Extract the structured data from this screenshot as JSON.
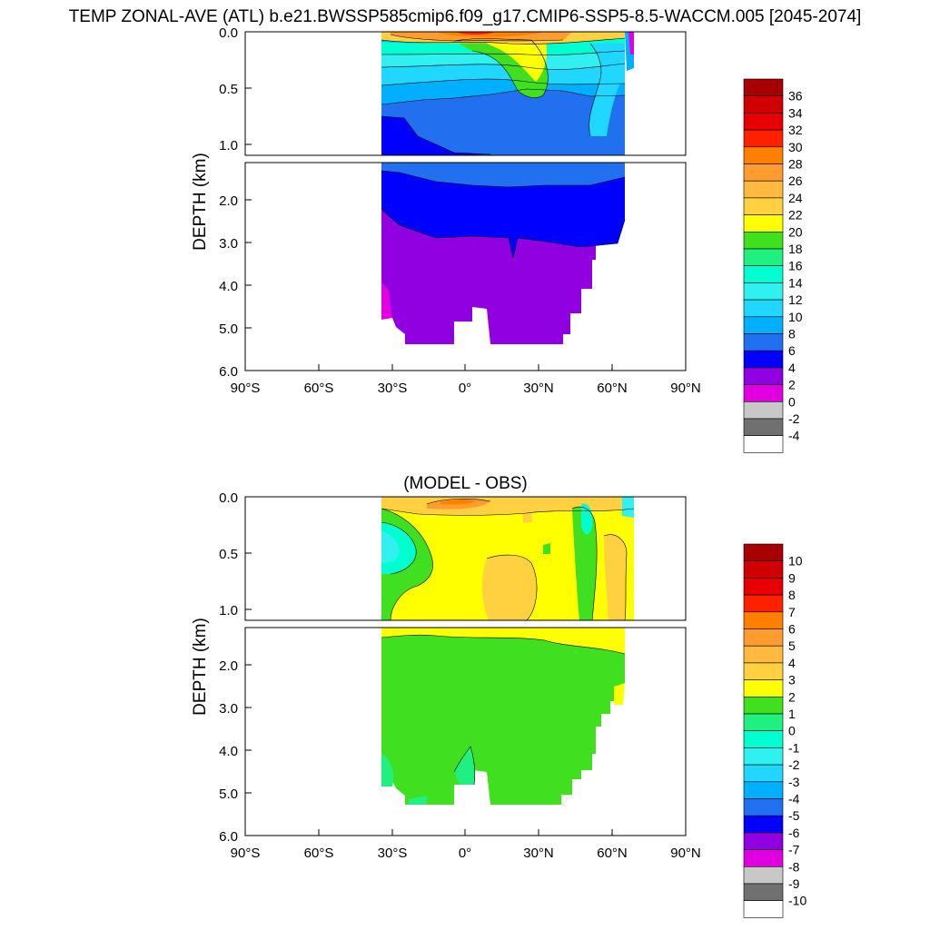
{
  "title": "TEMP ZONAL-AVE (ATL) b.e21.BWSSP585cmip6.f09_g17.CMIP6-SSP5-8.5-WACCM.005 [2045-2074]",
  "chart_data": [
    {
      "type": "heatmap",
      "title": "",
      "ylabel": "DEPTH (km)",
      "xlabel": "",
      "x_ticks": [
        "90°S",
        "60°S",
        "30°S",
        "0°",
        "30°N",
        "60°N",
        "90°N"
      ],
      "y_ticks_upper": [
        "0.0",
        "0.5",
        "1.0"
      ],
      "y_ticks_lower": [
        "2.0",
        "3.0",
        "4.0",
        "5.0",
        "6.0"
      ],
      "xlim": [
        -90,
        90
      ],
      "ylim_km": [
        0,
        6
      ],
      "colorbar_labels": [
        "36",
        "34",
        "32",
        "30",
        "28",
        "26",
        "24",
        "22",
        "20",
        "18",
        "16",
        "14",
        "12",
        "10",
        "8",
        "6",
        "4",
        "2",
        "0",
        "-2",
        "-4"
      ],
      "colorbar_colors": [
        "#a80000",
        "#d00000",
        "#e80000",
        "#ff2000",
        "#ff8000",
        "#ff9c30",
        "#ffb840",
        "#ffd040",
        "#ffff00",
        "#40e020",
        "#20f080",
        "#00ffd0",
        "#30f0f0",
        "#20d8ff",
        "#00b0ff",
        "#2070f0",
        "#0000ff",
        "#9000e0",
        "#e000e0",
        "#c8c8c8",
        "#707070",
        "#ffffff"
      ]
    },
    {
      "type": "heatmap",
      "title": "(MODEL - OBS)",
      "ylabel": "DEPTH (km)",
      "xlabel": "",
      "x_ticks": [
        "90°S",
        "60°S",
        "30°S",
        "0°",
        "30°N",
        "60°N",
        "90°N"
      ],
      "y_ticks_upper": [
        "0.0",
        "0.5",
        "1.0"
      ],
      "y_ticks_lower": [
        "2.0",
        "3.0",
        "4.0",
        "5.0",
        "6.0"
      ],
      "xlim": [
        -90,
        90
      ],
      "ylim_km": [
        0,
        6
      ],
      "colorbar_labels": [
        "10",
        "9",
        "8",
        "7",
        "6",
        "5",
        "4",
        "3",
        "2",
        "1",
        "0",
        "-1",
        "-2",
        "-3",
        "-4",
        "-5",
        "-6",
        "-7",
        "-8",
        "-9",
        "-10"
      ],
      "colorbar_colors": [
        "#a80000",
        "#d00000",
        "#e80000",
        "#ff2000",
        "#ff8000",
        "#ff9c30",
        "#ffb840",
        "#ffd040",
        "#ffff00",
        "#40e020",
        "#20f080",
        "#00ffd0",
        "#30f0f0",
        "#20d8ff",
        "#00b0ff",
        "#2070f0",
        "#0000ff",
        "#9000e0",
        "#e000e0",
        "#c8c8c8",
        "#707070",
        "#ffffff"
      ]
    }
  ]
}
